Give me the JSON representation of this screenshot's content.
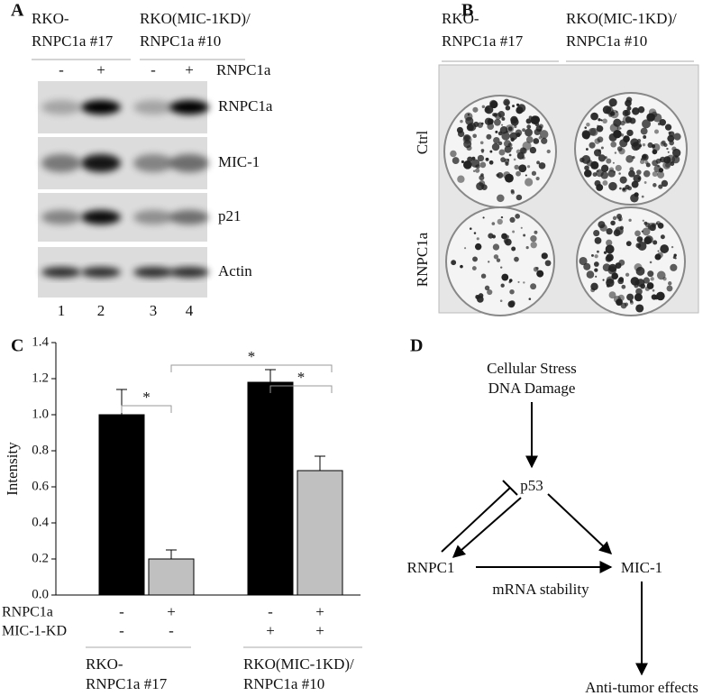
{
  "panel_a": {
    "label": "A",
    "groups": [
      [
        "RKO-",
        "RNPC1a #17"
      ],
      [
        "RKO(MIC-1KD)/",
        "RNPC1a #10"
      ]
    ],
    "treatment": {
      "name": "RNPC1a",
      "signs": [
        "-",
        "+",
        "-",
        "+"
      ]
    },
    "blots": [
      "RNPC1a",
      "MIC-1",
      "p21",
      "Actin"
    ],
    "lanes": [
      "1",
      "2",
      "3",
      "4"
    ]
  },
  "panel_b": {
    "label": "B",
    "groups": [
      [
        "RKO-",
        "RNPC1a #17"
      ],
      [
        "RKO(MIC-1KD)/",
        "RNPC1a #10"
      ]
    ],
    "rows": [
      "Ctrl",
      "RNPC1a"
    ]
  },
  "chart_data": {
    "type": "bar",
    "panel_label": "C",
    "ylabel": "Intensity",
    "categories": [
      null,
      null,
      null,
      null
    ],
    "values": [
      1.0,
      0.2,
      1.18,
      0.69
    ],
    "errors": [
      0.14,
      0.05,
      0.07,
      0.08
    ],
    "colors": [
      "#000000",
      "#c0c0c0",
      "#000000",
      "#c0c0c0"
    ],
    "ylim": [
      0,
      1.4
    ],
    "yticks": [
      {
        "value": 0,
        "label": "0.0"
      },
      0.2,
      0.4,
      0.6,
      0.8,
      {
        "value": 1,
        "label": "1.0"
      },
      1.2,
      1.4
    ],
    "conditions": [
      {
        "name": "RNPC1a",
        "values": [
          "-",
          "+",
          "-",
          "+"
        ]
      },
      {
        "name": "MIC-1-KD",
        "values": [
          "-",
          "-",
          "+",
          "+"
        ]
      }
    ],
    "groups": [
      [
        "RKO-",
        "RNPC1a #17"
      ],
      [
        "RKO(MIC-1KD)/",
        "RNPC1a #10"
      ]
    ],
    "annotations": [
      "*",
      "*",
      "*"
    ]
  },
  "panel_d": {
    "label": "D",
    "nodes": [
      [
        "Cellular Stress",
        "DNA Damage"
      ],
      [
        "p53"
      ],
      [
        "RNPC1"
      ],
      [
        "MIC-1"
      ],
      [
        "Anti-tumor effects"
      ]
    ],
    "edge_label": "mRNA stability"
  }
}
